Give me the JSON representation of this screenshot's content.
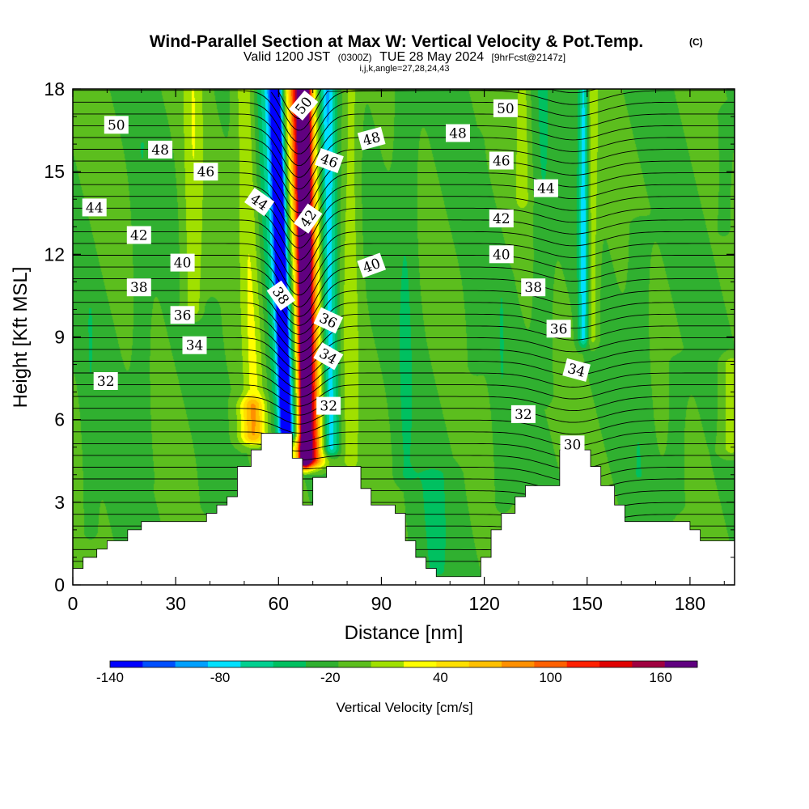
{
  "chart_data": {
    "type": "heatmap",
    "title": {
      "main": "Wind-Parallel Section at Max W: Vertical Velocity & Pot.Temp.",
      "copyright": "(C)",
      "valid_prefix": "Valid 1200 JST",
      "valid_utc": "(0300Z)",
      "valid_date": "TUE 28 May 2024",
      "forecast": "[9hrFcst@2147z]",
      "params": "i,j,k,angle=27,28,24,43"
    },
    "xlabel": "Distance [nm]",
    "ylabel": "Height [Kft MSL]",
    "xlim": [
      0,
      193
    ],
    "ylim": [
      0,
      18
    ],
    "x_ticks": [
      0,
      30,
      60,
      90,
      120,
      150,
      180
    ],
    "y_ticks": [
      0,
      3,
      6,
      9,
      12,
      15,
      18
    ],
    "x_tick_labels": [
      "0",
      "30",
      "60",
      "90",
      "120",
      "150",
      "180"
    ],
    "y_tick_labels": [
      "0",
      "3",
      "6",
      "9",
      "12",
      "15",
      "18"
    ],
    "colorbar": {
      "title": "Vertical Velocity [cm/s]",
      "min": -140,
      "max": 180,
      "step": 20,
      "labels": [
        "-140",
        "-80",
        "-20",
        "40",
        "100",
        "160"
      ],
      "label_values": [
        -140,
        -80,
        -20,
        40,
        100,
        160
      ],
      "colors": [
        "#0000ff",
        "#0050ff",
        "#00a0ff",
        "#00e0ff",
        "#00d090",
        "#00c060",
        "#30b030",
        "#5cbe1e",
        "#a0e000",
        "#ffff00",
        "#ffe000",
        "#ffc000",
        "#ff9000",
        "#ff6000",
        "#ff2000",
        "#e00000",
        "#a00040",
        "#600080"
      ]
    },
    "background_value": 0,
    "velocity_features": [
      {
        "x": 67.5,
        "y0": 4.6,
        "y1": 18,
        "drift": 0,
        "hw": 1.6,
        "value": 170
      },
      {
        "x": 69,
        "y0": 4.6,
        "y1": 18,
        "drift": -3,
        "hw": 3.2,
        "value": 130
      },
      {
        "x": 70,
        "y0": 4.6,
        "y1": 18,
        "drift": -4,
        "hw": 6,
        "value": 60
      },
      {
        "x": 62,
        "y0": 5.6,
        "y1": 18,
        "drift": -3,
        "hw": 1.6,
        "value": -150
      },
      {
        "x": 63,
        "y0": 5.6,
        "y1": 18,
        "drift": -5,
        "hw": 4.2,
        "value": -80
      },
      {
        "x": 75,
        "y0": 5,
        "y1": 18,
        "drift": -1,
        "hw": 2.5,
        "value": -90
      },
      {
        "x": 81,
        "y0": 4.5,
        "y1": 18,
        "drift": 0,
        "hw": 2.5,
        "value": 30
      },
      {
        "x": 53,
        "y0": 5.5,
        "y1": 18,
        "drift": -3,
        "hw": 3,
        "value": 40
      },
      {
        "x": 52,
        "y0": 5.4,
        "y1": 6.5,
        "drift": 0,
        "hw": 4,
        "value": 60
      },
      {
        "x": 35,
        "y0": 10,
        "y1": 18,
        "drift": 0,
        "hw": 3,
        "value": 35
      },
      {
        "x": 20,
        "y0": 4,
        "y1": 16,
        "drift": 0,
        "hw": 2.5,
        "value": -15
      },
      {
        "x": 5,
        "y0": 2,
        "y1": 10,
        "drift": 0,
        "hw": 2,
        "value": -15
      },
      {
        "x": 40,
        "y0": 3,
        "y1": 10,
        "drift": 0,
        "hw": 2.5,
        "value": -12
      },
      {
        "x": 97,
        "y0": 4,
        "y1": 18,
        "drift": 0,
        "hw": 3,
        "value": -20
      },
      {
        "x": 105,
        "y0": 0.5,
        "y1": 4,
        "drift": 0,
        "hw": 6,
        "value": -20
      },
      {
        "x": 117,
        "y0": 8,
        "y1": 16,
        "drift": 0,
        "hw": 2,
        "value": -12
      },
      {
        "x": 125,
        "y0": 3,
        "y1": 11,
        "drift": 0,
        "hw": 2,
        "value": -15
      },
      {
        "x": 137,
        "y0": 7,
        "y1": 18,
        "drift": 0,
        "hw": 2.5,
        "value": -20
      },
      {
        "x": 149,
        "y0": 9,
        "y1": 18,
        "drift": 0,
        "hw": 1.6,
        "value": -80
      },
      {
        "x": 151,
        "y0": 9,
        "y1": 18,
        "drift": 0,
        "hw": 2,
        "value": 40
      },
      {
        "x": 131,
        "y0": 14,
        "y1": 18,
        "drift": 0,
        "hw": 2,
        "value": 30
      },
      {
        "x": 165,
        "y0": 4,
        "y1": 13,
        "drift": 0,
        "hw": 3,
        "value": -15
      },
      {
        "x": 176,
        "y0": 3,
        "y1": 8,
        "drift": 0,
        "hw": 3,
        "value": -10
      },
      {
        "x": 192,
        "y0": 5,
        "y1": 8,
        "drift": 0,
        "hw": 3,
        "value": 35
      },
      {
        "x": 190,
        "y0": 13,
        "y1": 17,
        "drift": 0,
        "hw": 2,
        "value": -12
      }
    ],
    "terrain": [
      [
        0,
        0.6
      ],
      [
        3,
        0.6
      ],
      [
        3,
        1.0
      ],
      [
        7,
        1.0
      ],
      [
        7,
        1.3
      ],
      [
        10,
        1.3
      ],
      [
        10,
        1.6
      ],
      [
        16,
        1.6
      ],
      [
        16,
        2.0
      ],
      [
        20,
        2.0
      ],
      [
        20,
        2.3
      ],
      [
        39,
        2.3
      ],
      [
        39,
        2.6
      ],
      [
        42,
        2.6
      ],
      [
        42,
        2.9
      ],
      [
        45,
        2.9
      ],
      [
        45,
        3.2
      ],
      [
        48,
        3.2
      ],
      [
        48,
        4.3
      ],
      [
        52,
        4.3
      ],
      [
        52,
        4.9
      ],
      [
        55,
        4.9
      ],
      [
        55,
        5.5
      ],
      [
        64,
        5.5
      ],
      [
        64,
        4.6
      ],
      [
        67,
        4.6
      ],
      [
        67,
        2.9
      ],
      [
        70,
        2.9
      ],
      [
        70,
        3.9
      ],
      [
        74,
        3.9
      ],
      [
        74,
        4.3
      ],
      [
        84,
        4.3
      ],
      [
        84,
        3.5
      ],
      [
        87,
        3.5
      ],
      [
        87,
        2.9
      ],
      [
        94,
        2.9
      ],
      [
        94,
        2.6
      ],
      [
        97,
        2.6
      ],
      [
        97,
        1.6
      ],
      [
        100,
        1.6
      ],
      [
        100,
        1.0
      ],
      [
        103,
        1.0
      ],
      [
        103,
        0.6
      ],
      [
        106,
        0.6
      ],
      [
        106,
        0.3
      ],
      [
        119,
        0.3
      ],
      [
        119,
        1.0
      ],
      [
        122,
        1.0
      ],
      [
        122,
        2.0
      ],
      [
        125,
        2.0
      ],
      [
        125,
        2.6
      ],
      [
        129,
        2.6
      ],
      [
        129,
        3.2
      ],
      [
        132,
        3.2
      ],
      [
        132,
        3.6
      ],
      [
        142,
        3.6
      ],
      [
        142,
        4.9
      ],
      [
        151,
        4.9
      ],
      [
        151,
        4.3
      ],
      [
        154,
        4.3
      ],
      [
        154,
        3.6
      ],
      [
        158,
        3.6
      ],
      [
        158,
        2.9
      ],
      [
        161,
        2.9
      ],
      [
        161,
        2.3
      ],
      [
        180,
        2.3
      ],
      [
        180,
        2.0
      ],
      [
        183,
        2.0
      ],
      [
        183,
        1.6
      ],
      [
        193,
        1.6
      ]
    ],
    "isentropes": {
      "levels": [
        29,
        30,
        30.5,
        31,
        31.5,
        32,
        32.5,
        33,
        33.5,
        34,
        34.5,
        35,
        35.5,
        36,
        36.5,
        37,
        37.5,
        38,
        38.5,
        39,
        39.5,
        40,
        40.5,
        41,
        41.5,
        42,
        42.5,
        43,
        43.5,
        44,
        44.5,
        45,
        45.5,
        46,
        46.5,
        47,
        47.5,
        48,
        48.5,
        49,
        49.5,
        50,
        50.5,
        51
      ],
      "labels": [
        {
          "text": "50",
          "x": 12.7,
          "y": 16.7,
          "angle": 0
        },
        {
          "text": "48",
          "x": 25.5,
          "y": 15.8,
          "angle": 0
        },
        {
          "text": "46",
          "x": 38.8,
          "y": 15.0,
          "angle": 0
        },
        {
          "text": "44",
          "x": 6.3,
          "y": 13.7,
          "angle": 0
        },
        {
          "text": "42",
          "x": 19.3,
          "y": 12.7,
          "angle": 0
        },
        {
          "text": "40",
          "x": 32.0,
          "y": 11.7,
          "angle": 0
        },
        {
          "text": "38",
          "x": 19.3,
          "y": 10.8,
          "angle": 0
        },
        {
          "text": "36",
          "x": 32.0,
          "y": 9.8,
          "angle": 0
        },
        {
          "text": "34",
          "x": 35.5,
          "y": 8.7,
          "angle": 0
        },
        {
          "text": "32",
          "x": 9.6,
          "y": 7.4,
          "angle": 0
        },
        {
          "text": "44",
          "x": 54.4,
          "y": 13.9,
          "angle": 35
        },
        {
          "text": "50",
          "x": 67.3,
          "y": 17.4,
          "angle": -50
        },
        {
          "text": "46",
          "x": 74.8,
          "y": 15.4,
          "angle": 20
        },
        {
          "text": "42",
          "x": 68.6,
          "y": 13.3,
          "angle": -55
        },
        {
          "text": "38",
          "x": 60.7,
          "y": 10.5,
          "angle": 55
        },
        {
          "text": "36",
          "x": 74.5,
          "y": 9.6,
          "angle": 25
        },
        {
          "text": "34",
          "x": 74.5,
          "y": 8.3,
          "angle": 30
        },
        {
          "text": "32",
          "x": 74.6,
          "y": 6.5,
          "angle": 0
        },
        {
          "text": "48",
          "x": 87.1,
          "y": 16.2,
          "angle": -15
        },
        {
          "text": "40",
          "x": 87.1,
          "y": 11.6,
          "angle": -20
        },
        {
          "text": "48",
          "x": 112.3,
          "y": 16.4,
          "angle": 0
        },
        {
          "text": "50",
          "x": 126.2,
          "y": 17.3,
          "angle": 0
        },
        {
          "text": "46",
          "x": 125.0,
          "y": 15.4,
          "angle": 0
        },
        {
          "text": "44",
          "x": 138.0,
          "y": 14.4,
          "angle": 0
        },
        {
          "text": "42",
          "x": 125.0,
          "y": 13.3,
          "angle": 0
        },
        {
          "text": "40",
          "x": 125.0,
          "y": 12.0,
          "angle": 0
        },
        {
          "text": "38",
          "x": 134.3,
          "y": 10.8,
          "angle": 0
        },
        {
          "text": "36",
          "x": 141.7,
          "y": 9.3,
          "angle": 0
        },
        {
          "text": "34",
          "x": 146.9,
          "y": 7.8,
          "angle": 15
        },
        {
          "text": "32",
          "x": 131.4,
          "y": 6.2,
          "angle": 0
        },
        {
          "text": "30",
          "x": 145.7,
          "y": 5.1,
          "angle": 0
        }
      ]
    }
  }
}
